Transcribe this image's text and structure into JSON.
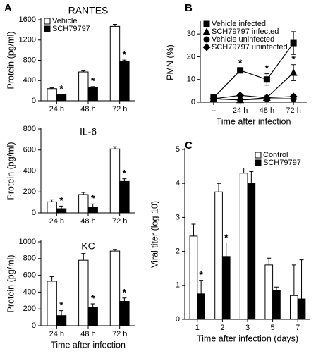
{
  "chart_data": [
    {
      "type": "bar",
      "panel": "A",
      "title": "RANTES",
      "y_label": "Protein (pg/ml)",
      "categories": [
        "24 h",
        "48 h",
        "72 h"
      ],
      "series": [
        {
          "name": "Vehicle",
          "color": "#ffffff",
          "values": [
            240,
            570,
            1470
          ],
          "errors": [
            15,
            20,
            40
          ]
        },
        {
          "name": "SCH79797",
          "color": "#000000",
          "values": [
            120,
            260,
            780
          ],
          "errors": [
            10,
            20,
            25
          ]
        }
      ],
      "ylim": [
        0,
        1600
      ],
      "yticks": [
        0,
        400,
        800,
        1200,
        1600
      ],
      "legend": "top-left",
      "annotations": [
        {
          "text": "*",
          "category": "24 h",
          "series": "SCH79797"
        },
        {
          "text": "*",
          "category": "48 h",
          "series": "SCH79797"
        },
        {
          "text": "*",
          "category": "72 h",
          "series": "SCH79797"
        }
      ]
    },
    {
      "type": "bar",
      "title": "IL-6",
      "y_label": "Protein (pg/ml)",
      "categories": [
        "24 h",
        "48 h",
        "72 h"
      ],
      "series": [
        {
          "color": "#ffffff",
          "values": [
            105,
            175,
            610
          ],
          "errors": [
            20,
            20,
            20
          ]
        },
        {
          "color": "#000000",
          "values": [
            40,
            55,
            300
          ],
          "errors": [
            25,
            30,
            25
          ]
        }
      ],
      "ylim": [
        0,
        800
      ],
      "yticks": [
        0,
        200,
        400,
        600,
        800
      ],
      "annotations": [
        {
          "text": "*",
          "category": "24 h",
          "series": 1
        },
        {
          "text": "*",
          "category": "48 h",
          "series": 1
        },
        {
          "text": "*",
          "category": "72 h",
          "series": 1
        }
      ]
    },
    {
      "type": "bar",
      "title": "KC",
      "y_label": "Protein (pg/ml)",
      "x_label": "Time after infection",
      "categories": [
        "24 h",
        "48 h",
        "72 h"
      ],
      "series": [
        {
          "color": "#ffffff",
          "values": [
            530,
            780,
            890
          ],
          "errors": [
            55,
            80,
            20
          ]
        },
        {
          "color": "#000000",
          "values": [
            120,
            220,
            290
          ],
          "errors": [
            60,
            40,
            40
          ]
        }
      ],
      "ylim": [
        0,
        1000
      ],
      "yticks": [
        0,
        200,
        400,
        600,
        800,
        1000
      ],
      "annotations": [
        {
          "text": "*",
          "category": "24 h",
          "series": 1
        },
        {
          "text": "*",
          "category": "48 h",
          "series": 1
        },
        {
          "text": "*",
          "category": "72 h",
          "series": 1
        }
      ]
    },
    {
      "type": "line",
      "panel": "B",
      "y_label": "PMN (%)",
      "x_label": "Time after infection",
      "categories": [
        "–",
        "24 h",
        "48 h",
        "72 h"
      ],
      "series": [
        {
          "name": "Vehicle infected",
          "color": "#000000",
          "marker": "square",
          "values": [
            2,
            14,
            10,
            26
          ],
          "errors": [
            1,
            1,
            2.5,
            5
          ]
        },
        {
          "name": "SCH79797 infected",
          "color": "#000000",
          "marker": "triangle",
          "values": [
            1.5,
            1,
            2,
            13
          ],
          "errors": [
            1,
            0.5,
            1,
            3.5
          ]
        },
        {
          "name": "Vehicle uninfected",
          "color": "#000000",
          "marker": "circle",
          "values": [
            1.5,
            1,
            1.5,
            1.5
          ],
          "errors": [
            0.5,
            0.5,
            0.5,
            0.5
          ]
        },
        {
          "name": "SCH79797 uninfected",
          "color": "#000000",
          "marker": "diamond",
          "values": [
            1.5,
            3,
            2,
            2.5
          ],
          "errors": [
            0.5,
            0.5,
            0.5,
            0.5
          ]
        }
      ],
      "ylim": [
        0,
        35
      ],
      "yticks": [
        0,
        10,
        20,
        30
      ],
      "legend": "top-left",
      "annotations": [
        {
          "text": "*",
          "category": "24 h",
          "series": "Vehicle infected"
        },
        {
          "text": "*",
          "category": "48 h",
          "series": "Vehicle infected"
        },
        {
          "text": "*",
          "category": "72 h",
          "series": "SCH79797 infected"
        }
      ]
    },
    {
      "type": "bar",
      "panel": "C",
      "y_label": "Viral titer (log 10)",
      "x_label": "Time after infection (days)",
      "categories": [
        "1",
        "2",
        "3",
        "5",
        "7"
      ],
      "series": [
        {
          "name": "Control",
          "color": "#ffffff",
          "values": [
            2.45,
            3.75,
            4.3,
            1.6,
            0.7
          ],
          "errors": [
            0.35,
            0.25,
            0.15,
            0.2,
            0.9
          ]
        },
        {
          "name": "SCH79797",
          "color": "#000000",
          "values": [
            0.75,
            1.85,
            4.0,
            0.85,
            0.6
          ],
          "errors": [
            0.4,
            0.4,
            0.35,
            0.1,
            1.15
          ]
        }
      ],
      "ylim": [
        0,
        5
      ],
      "yticks": [
        0,
        1,
        2,
        3,
        4,
        5
      ],
      "legend": "top-right",
      "annotations": [
        {
          "text": "*",
          "category": "1",
          "series": "SCH79797"
        },
        {
          "text": "*",
          "category": "2",
          "series": "SCH79797"
        }
      ]
    }
  ]
}
